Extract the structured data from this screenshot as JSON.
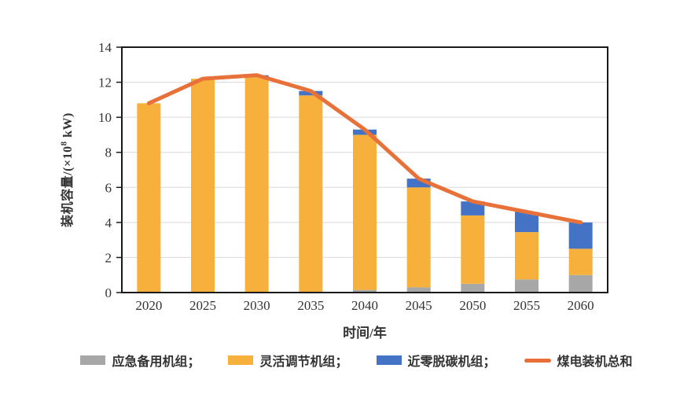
{
  "chart_data": {
    "type": "bar",
    "subtype": "stacked-bars-with-total-line",
    "title": "",
    "xlabel": "时间/年",
    "ylabel": "装机容量/(×10⁸ kW)",
    "ylabel_prefix": "装机容量/(×10",
    "ylabel_sup": "8",
    "ylabel_suffix": " kW)",
    "ylim": [
      0,
      14
    ],
    "yticks": [
      0,
      2,
      4,
      6,
      8,
      10,
      12,
      14
    ],
    "grid": "horizontal",
    "legend_position": "bottom",
    "categories": [
      "2020",
      "2025",
      "2030",
      "2035",
      "2040",
      "2045",
      "2050",
      "2055",
      "2060"
    ],
    "series": [
      {
        "name": "应急备用机组",
        "key": "emergency-backup-units",
        "type": "bar",
        "color": "#a7a7a7",
        "values": [
          0,
          0,
          0,
          0,
          0.15,
          0.3,
          0.5,
          0.75,
          1.0
        ]
      },
      {
        "name": "灵活调节机组",
        "key": "flexible-regulation-units",
        "type": "bar",
        "color": "#f7b03c",
        "values": [
          10.8,
          12.2,
          12.3,
          11.25,
          8.85,
          5.7,
          3.9,
          2.7,
          1.5
        ]
      },
      {
        "name": "近零脱碳机组",
        "key": "near-zero-decarbonized-units",
        "type": "bar",
        "color": "#4472c4",
        "values": [
          0,
          0,
          0.1,
          0.25,
          0.3,
          0.5,
          0.8,
          1.15,
          1.5
        ]
      },
      {
        "name": "煤电装机总和",
        "key": "total-coal-power-capacity",
        "type": "line",
        "color": "#e8713a",
        "values": [
          10.8,
          12.2,
          12.4,
          11.5,
          9.3,
          6.5,
          5.2,
          4.6,
          4.0
        ]
      }
    ],
    "legend": [
      {
        "label": "应急备用机组；",
        "swatch": "bar",
        "color": "#a7a7a7"
      },
      {
        "label": "灵活调节机组；",
        "swatch": "bar",
        "color": "#f7b03c"
      },
      {
        "label": "近零脱碳机组；",
        "swatch": "bar",
        "color": "#4472c4"
      },
      {
        "label": "煤电装机总和",
        "swatch": "line",
        "color": "#e8713a"
      }
    ],
    "colors": {
      "grid": "#d9d9d9",
      "axis": "#1a1a1a",
      "background": "#ffffff"
    }
  }
}
